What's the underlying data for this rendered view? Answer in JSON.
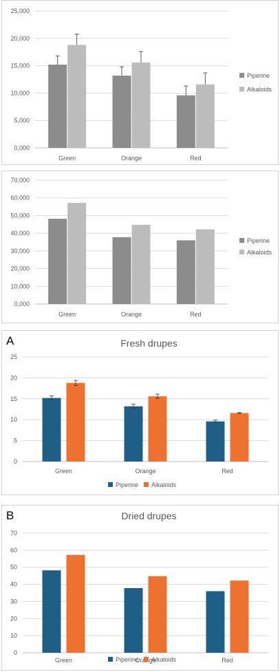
{
  "chart_data": [
    {
      "type": "bar",
      "title": "",
      "panel_label": "",
      "categories": [
        "Green",
        "Orange",
        "Red"
      ],
      "series": [
        {
          "name": "Piperine",
          "values": [
            15.2,
            13.2,
            9.6
          ],
          "errors": [
            1.6,
            1.6,
            1.7
          ],
          "color": "#8c8c8c"
        },
        {
          "name": "Alkaloids",
          "values": [
            18.8,
            15.6,
            11.6
          ],
          "errors": [
            2.0,
            2.0,
            2.1
          ],
          "color": "#bcbcbc"
        }
      ],
      "yticks": [
        "0,000",
        "5,000",
        "10,000",
        "15,000",
        "20,000",
        "25,000"
      ],
      "ylim": [
        0,
        25
      ],
      "grid": true,
      "legend_position": "right"
    },
    {
      "type": "bar",
      "title": "",
      "panel_label": "",
      "categories": [
        "Green",
        "Orange",
        "Red"
      ],
      "series": [
        {
          "name": "Piperine",
          "values": [
            48.2,
            37.8,
            36.0
          ],
          "color": "#8c8c8c"
        },
        {
          "name": "Alkaloids",
          "values": [
            57.2,
            44.8,
            42.2
          ],
          "color": "#bcbcbc"
        }
      ],
      "yticks": [
        "0,000",
        "10,000",
        "20,000",
        "30,000",
        "40,000",
        "50,000",
        "60,000",
        "70,000"
      ],
      "ylim": [
        0,
        70
      ],
      "grid": true,
      "legend_position": "right"
    },
    {
      "type": "bar",
      "title": "Fresh drupes",
      "panel_label": "A",
      "categories": [
        "Green",
        "Orange",
        "Red"
      ],
      "series": [
        {
          "name": "Piperine",
          "values": [
            15.2,
            13.2,
            9.6
          ],
          "errors": [
            0.5,
            0.5,
            0.3
          ],
          "color": "#1f5f85"
        },
        {
          "name": "Alkaloids",
          "values": [
            18.8,
            15.6,
            11.6
          ],
          "errors": [
            0.6,
            0.5,
            0.15
          ],
          "color": "#ed7231"
        }
      ],
      "yticks": [
        "0",
        "5",
        "10",
        "15",
        "20",
        "25"
      ],
      "ylim": [
        0,
        25
      ],
      "grid": true,
      "legend_position": "bottom"
    },
    {
      "type": "bar",
      "title": "Dried drupes",
      "panel_label": "B",
      "categories": [
        "Green",
        "Orange",
        "Red"
      ],
      "series": [
        {
          "name": "Piperine",
          "values": [
            48.2,
            37.8,
            36.0
          ],
          "color": "#1f5f85"
        },
        {
          "name": "Alkaloids",
          "values": [
            57.2,
            44.8,
            42.2
          ],
          "color": "#ed7231"
        }
      ],
      "yticks": [
        "0",
        "10",
        "20",
        "30",
        "40",
        "50",
        "60",
        "70"
      ],
      "ylim": [
        0,
        70
      ],
      "grid": true,
      "legend_position": "bottom"
    }
  ]
}
